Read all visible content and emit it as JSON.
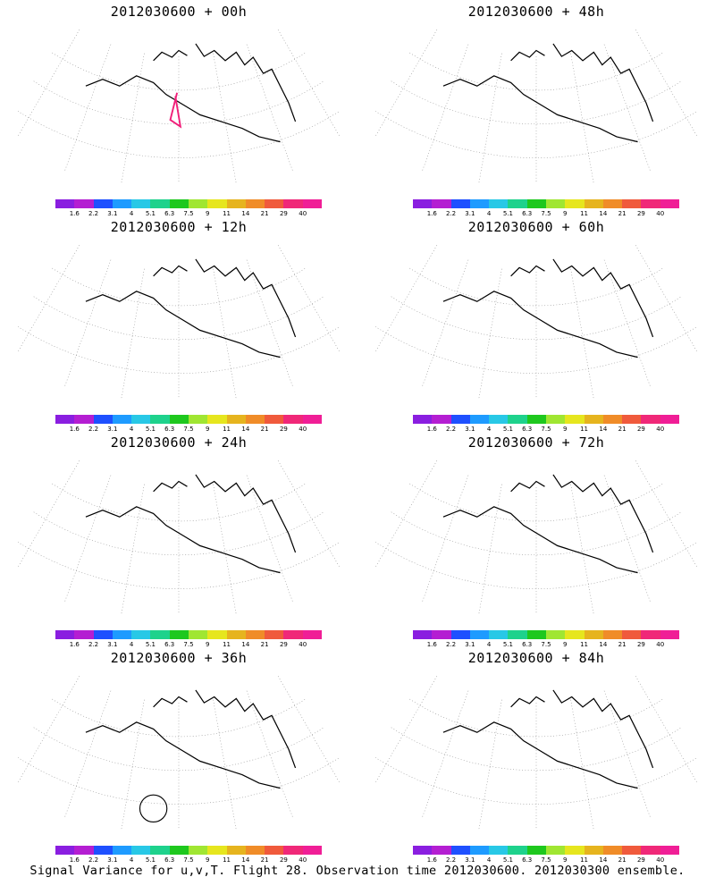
{
  "panels": [
    {
      "title": "2012030600 + 00h",
      "level": 0
    },
    {
      "title": "2012030600 + 48h",
      "level": 4
    },
    {
      "title": "2012030600 + 12h",
      "level": 1
    },
    {
      "title": "2012030600 + 60h",
      "level": 5
    },
    {
      "title": "2012030600 + 24h",
      "level": 2
    },
    {
      "title": "2012030600 + 72h",
      "level": 6
    },
    {
      "title": "2012030600 + 36h",
      "level": 3
    },
    {
      "title": "2012030600 + 84h",
      "level": 7
    }
  ],
  "colorbar": {
    "labels": [
      "1.6",
      "2.2",
      "3.1",
      "4",
      "5.1",
      "6.3",
      "7.5",
      "9",
      "11",
      "14",
      "21",
      "29",
      "40"
    ],
    "colors": [
      "#8a1ee0",
      "#b41ed2",
      "#1e50ff",
      "#1e9bff",
      "#28c8e6",
      "#1ed28c",
      "#1ec81e",
      "#a0e632",
      "#e6e61e",
      "#e6b41e",
      "#f08c28",
      "#f05a3c",
      "#f02878",
      "#f01e96"
    ]
  },
  "footer": "Signal Variance for u,v,T. Flight 28. Observation time 2012030600. 2012030300 ensemble."
}
